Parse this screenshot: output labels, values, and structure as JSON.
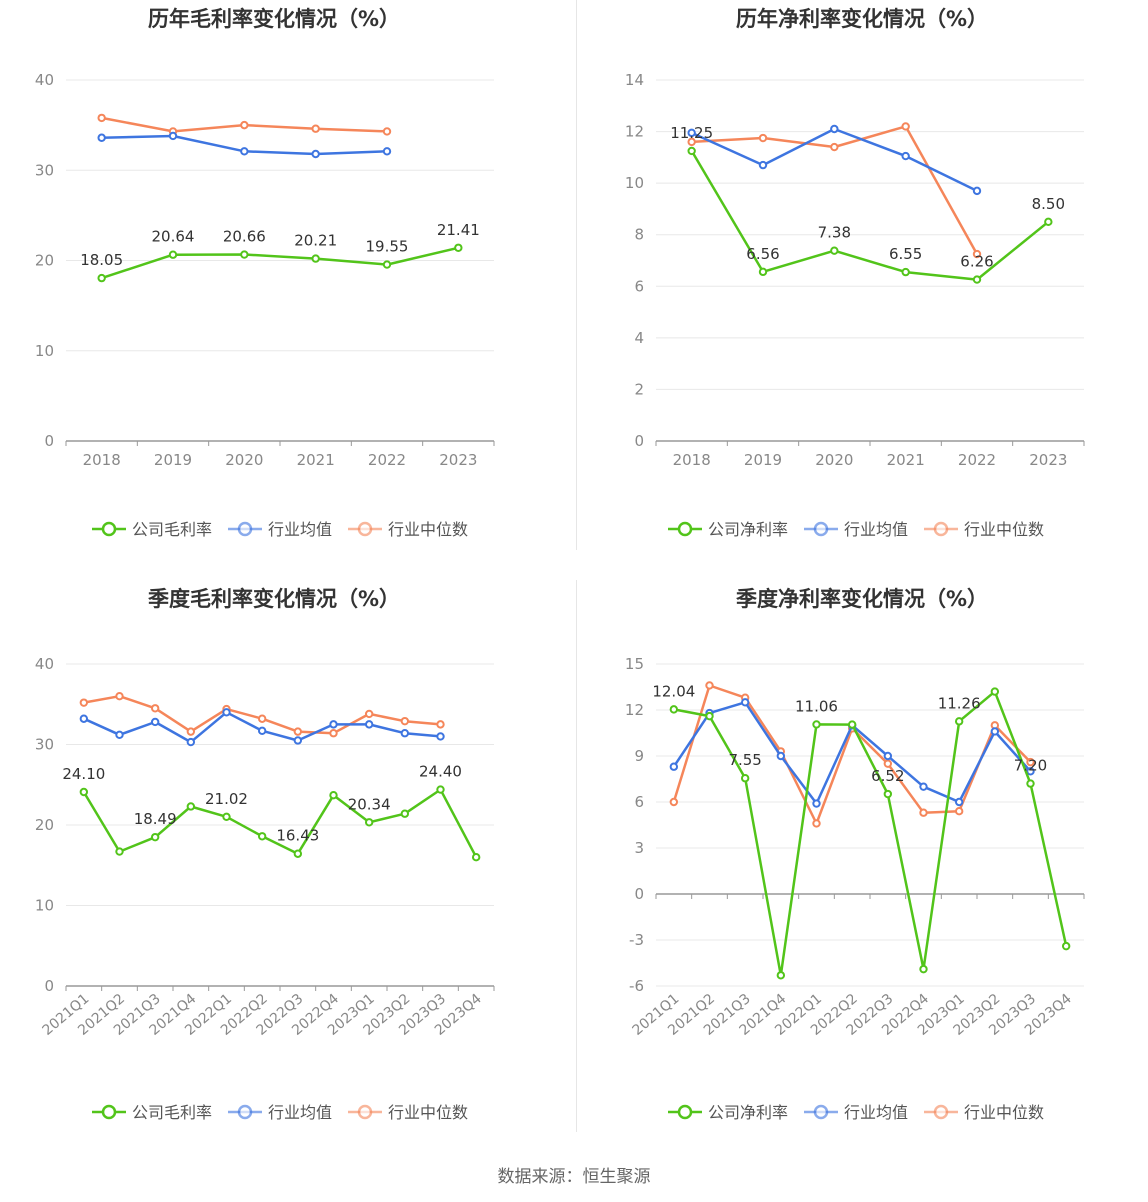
{
  "source_text": "数据来源：恒生聚源",
  "colors": {
    "company": "#52c41a",
    "avg": "#3e75e0",
    "median": "#f5865a",
    "grid": "#e8e8e8",
    "axis": "#999999"
  },
  "chart_data": [
    {
      "type": "line",
      "title": "历年毛利率变化情况（%）",
      "categories": [
        "2018",
        "2019",
        "2020",
        "2021",
        "2022",
        "2023"
      ],
      "ylim": [
        0,
        40
      ],
      "yticks": [
        0,
        10,
        20,
        30,
        40
      ],
      "series": [
        {
          "name": "公司毛利率",
          "color": "#52c41a",
          "values": [
            18.05,
            20.64,
            20.66,
            20.21,
            19.55,
            21.41
          ],
          "labels": true
        },
        {
          "name": "行业均值",
          "color": "#3e75e0",
          "values": [
            33.6,
            33.8,
            32.1,
            31.8,
            32.1,
            null
          ]
        },
        {
          "name": "行业中位数",
          "color": "#f5865a",
          "values": [
            35.8,
            34.3,
            35.0,
            34.6,
            34.3,
            null
          ]
        }
      ]
    },
    {
      "type": "line",
      "title": "历年净利率变化情况（%）",
      "categories": [
        "2018",
        "2019",
        "2020",
        "2021",
        "2022",
        "2023"
      ],
      "ylim": [
        0,
        14
      ],
      "yticks": [
        0,
        2,
        4,
        6,
        8,
        10,
        12,
        14
      ],
      "series": [
        {
          "name": "公司净利率",
          "color": "#52c41a",
          "values": [
            11.25,
            6.56,
            7.38,
            6.55,
            6.26,
            8.5
          ],
          "labels": true
        },
        {
          "name": "行业均值",
          "color": "#3e75e0",
          "values": [
            11.95,
            10.7,
            12.1,
            11.05,
            9.7,
            null
          ]
        },
        {
          "name": "行业中位数",
          "color": "#f5865a",
          "values": [
            11.6,
            11.75,
            11.4,
            12.2,
            7.25,
            null
          ]
        }
      ]
    },
    {
      "type": "line",
      "title": "季度毛利率变化情况（%）",
      "categories": [
        "2021Q1",
        "2021Q2",
        "2021Q3",
        "2021Q4",
        "2022Q1",
        "2022Q2",
        "2022Q3",
        "2022Q4",
        "2023Q1",
        "2023Q2",
        "2023Q3",
        "2023Q4"
      ],
      "ylim": [
        0,
        40
      ],
      "yticks": [
        0,
        10,
        20,
        30,
        40
      ],
      "rotate_x": true,
      "series": [
        {
          "name": "公司毛利率",
          "color": "#52c41a",
          "values": [
            24.1,
            16.7,
            18.49,
            22.3,
            21.02,
            18.6,
            16.43,
            23.7,
            20.34,
            21.4,
            24.4,
            16.0
          ],
          "label_idx": [
            0,
            2,
            4,
            6,
            8,
            10
          ]
        },
        {
          "name": "行业均值",
          "color": "#3e75e0",
          "values": [
            33.2,
            31.2,
            32.8,
            30.3,
            34.0,
            31.7,
            30.5,
            32.5,
            32.5,
            31.4,
            31.0,
            null
          ]
        },
        {
          "name": "行业中位数",
          "color": "#f5865a",
          "values": [
            35.2,
            36.0,
            34.5,
            31.6,
            34.4,
            33.2,
            31.6,
            31.4,
            33.8,
            32.9,
            32.5,
            null
          ]
        }
      ]
    },
    {
      "type": "line",
      "title": "季度净利率变化情况（%）",
      "categories": [
        "2021Q1",
        "2021Q2",
        "2021Q3",
        "2021Q4",
        "2022Q1",
        "2022Q2",
        "2022Q3",
        "2022Q4",
        "2023Q1",
        "2023Q2",
        "2023Q3",
        "2023Q4"
      ],
      "ylim": [
        -6,
        15
      ],
      "yticks": [
        -6,
        -3,
        0,
        3,
        6,
        9,
        12,
        15
      ],
      "rotate_x": true,
      "zero_axis": true,
      "series": [
        {
          "name": "公司净利率",
          "color": "#52c41a",
          "values": [
            12.04,
            11.6,
            7.55,
            -5.3,
            11.06,
            11.05,
            6.52,
            -4.9,
            11.26,
            13.2,
            7.2,
            -3.4
          ],
          "label_idx": [
            0,
            2,
            4,
            6,
            8,
            10
          ]
        },
        {
          "name": "行业均值",
          "color": "#3e75e0",
          "values": [
            8.3,
            11.8,
            12.5,
            9.0,
            5.9,
            11.0,
            9.0,
            7.0,
            6.0,
            10.6,
            8.0,
            null
          ]
        },
        {
          "name": "行业中位数",
          "color": "#f5865a",
          "values": [
            6.0,
            13.6,
            12.8,
            9.3,
            4.6,
            10.8,
            8.5,
            5.3,
            5.4,
            11.0,
            8.6,
            null
          ]
        }
      ]
    }
  ]
}
